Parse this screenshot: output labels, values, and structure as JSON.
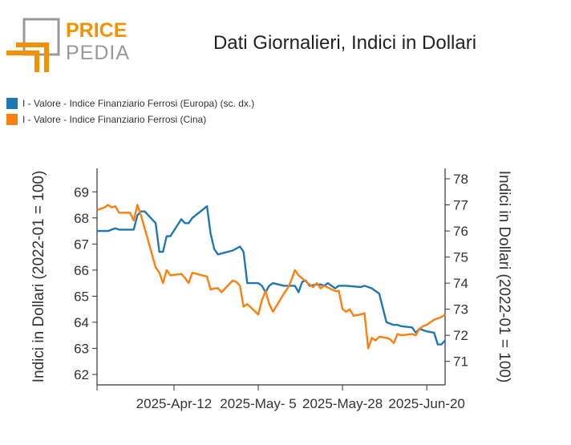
{
  "logo": {
    "word1": "PRICE",
    "word2": "PEDIA"
  },
  "title": "Dati Giornalieri, Indici in Dollari",
  "colors": {
    "europe": "#1f77b4",
    "china": "#ff7f0e",
    "axis": "#333333",
    "logo_orange": "#f39200",
    "logo_gray": "#999999"
  },
  "legend": [
    {
      "label": "I - Valore - Indice Finanziario Ferrosi (Europa) (sc. dx.)",
      "color": "#1f77b4"
    },
    {
      "label": "I - Valore - Indice Finanziario Ferrosi (Cina)",
      "color": "#ff7f0e"
    }
  ],
  "chart_data": {
    "type": "line",
    "x_ticks": [
      "2025-Apr-12",
      "2025-May- 5",
      "2025-May-28",
      "2025-Jun-20"
    ],
    "y_left": {
      "label": "Indici in Dollari (2022-01 = 100)",
      "ticks": [
        62,
        63,
        64,
        65,
        66,
        67,
        68,
        69
      ],
      "range": [
        61.6,
        69.9
      ]
    },
    "y_right": {
      "label": "Indici in Dollari (2022-01 = 100)",
      "ticks": [
        71,
        72,
        73,
        74,
        75,
        76,
        77,
        78
      ],
      "range": [
        70.1,
        78.4
      ]
    },
    "series": [
      {
        "name": "I - Valore - Indice Finanziario Ferrosi (Europa) (sc. dx.)",
        "axis": "right",
        "points": [
          [
            "2025-03-22",
            76.0
          ],
          [
            "2025-03-24",
            76.0
          ],
          [
            "2025-03-25",
            76.0
          ],
          [
            "2025-03-26",
            76.05
          ],
          [
            "2025-03-27",
            76.1
          ],
          [
            "2025-03-28",
            76.05
          ],
          [
            "2025-03-31",
            76.05
          ],
          [
            "2025-04-01",
            76.05
          ],
          [
            "2025-04-02",
            76.6
          ],
          [
            "2025-04-03",
            76.75
          ],
          [
            "2025-04-04",
            76.75
          ],
          [
            "2025-04-07",
            76.3
          ],
          [
            "2025-04-08",
            75.2
          ],
          [
            "2025-04-09",
            75.2
          ],
          [
            "2025-04-10",
            75.8
          ],
          [
            "2025-04-11",
            75.8
          ],
          [
            "2025-04-14",
            76.45
          ],
          [
            "2025-04-15",
            76.3
          ],
          [
            "2025-04-16",
            76.3
          ],
          [
            "2025-04-17",
            76.5
          ],
          [
            "2025-04-21",
            76.95
          ],
          [
            "2025-04-22",
            75.9
          ],
          [
            "2025-04-23",
            75.3
          ],
          [
            "2025-04-24",
            75.1
          ],
          [
            "2025-04-28",
            75.25
          ],
          [
            "2025-04-30",
            75.4
          ],
          [
            "2025-05-01",
            75.2
          ],
          [
            "2025-05-02",
            74.0
          ],
          [
            "2025-05-05",
            74.0
          ],
          [
            "2025-05-06",
            73.9
          ],
          [
            "2025-05-07",
            73.65
          ],
          [
            "2025-05-08",
            73.9
          ],
          [
            "2025-05-09",
            74.0
          ],
          [
            "2025-05-12",
            73.9
          ],
          [
            "2025-05-15",
            73.9
          ],
          [
            "2025-05-16",
            73.65
          ],
          [
            "2025-05-17",
            74.05
          ],
          [
            "2025-05-18",
            74.1
          ],
          [
            "2025-05-19",
            73.9
          ],
          [
            "2025-05-21",
            73.95
          ],
          [
            "2025-05-22",
            73.95
          ],
          [
            "2025-05-23",
            73.9
          ],
          [
            "2025-05-24",
            74.0
          ],
          [
            "2025-05-26",
            73.8
          ],
          [
            "2025-05-27",
            73.9
          ],
          [
            "2025-05-29",
            73.9
          ],
          [
            "2025-06-02",
            73.85
          ],
          [
            "2025-06-03",
            73.9
          ],
          [
            "2025-06-04",
            73.85
          ],
          [
            "2025-06-05",
            73.8
          ],
          [
            "2025-06-07",
            73.6
          ],
          [
            "2025-06-09",
            72.5
          ],
          [
            "2025-06-10",
            72.45
          ],
          [
            "2025-06-11",
            72.4
          ],
          [
            "2025-06-12",
            72.4
          ],
          [
            "2025-06-13",
            72.35
          ],
          [
            "2025-06-16",
            72.3
          ],
          [
            "2025-06-17",
            72.1
          ],
          [
            "2025-06-18",
            72.25
          ],
          [
            "2025-06-19",
            72.2
          ],
          [
            "2025-06-20",
            72.15
          ],
          [
            "2025-06-22",
            72.1
          ],
          [
            "2025-06-23",
            71.65
          ],
          [
            "2025-06-24",
            71.65
          ],
          [
            "2025-06-25",
            71.8
          ]
        ]
      },
      {
        "name": "I - Valore - Indice Finanziario Ferrosi (Cina)",
        "axis": "left",
        "points": [
          [
            "2025-03-22",
            68.3
          ],
          [
            "2025-03-24",
            68.4
          ],
          [
            "2025-03-25",
            68.5
          ],
          [
            "2025-03-26",
            68.4
          ],
          [
            "2025-03-27",
            68.45
          ],
          [
            "2025-03-28",
            68.2
          ],
          [
            "2025-03-31",
            68.2
          ],
          [
            "2025-04-01",
            67.9
          ],
          [
            "2025-04-02",
            68.5
          ],
          [
            "2025-04-03",
            68.1
          ],
          [
            "2025-04-07",
            66.1
          ],
          [
            "2025-04-08",
            65.9
          ],
          [
            "2025-04-09",
            65.5
          ],
          [
            "2025-04-10",
            66.0
          ],
          [
            "2025-04-11",
            65.8
          ],
          [
            "2025-04-14",
            65.85
          ],
          [
            "2025-04-15",
            65.7
          ],
          [
            "2025-04-16",
            65.5
          ],
          [
            "2025-04-17",
            65.9
          ],
          [
            "2025-04-21",
            65.75
          ],
          [
            "2025-04-22",
            65.25
          ],
          [
            "2025-04-23",
            65.3
          ],
          [
            "2025-04-24",
            65.3
          ],
          [
            "2025-04-25",
            65.15
          ],
          [
            "2025-04-28",
            65.6
          ],
          [
            "2025-04-29",
            65.55
          ],
          [
            "2025-04-30",
            65.4
          ],
          [
            "2025-05-01",
            64.6
          ],
          [
            "2025-05-02",
            64.7
          ],
          [
            "2025-05-05",
            64.3
          ],
          [
            "2025-05-06",
            64.85
          ],
          [
            "2025-05-07",
            65.2
          ],
          [
            "2025-05-08",
            64.7
          ],
          [
            "2025-05-09",
            64.4
          ],
          [
            "2025-05-12",
            65.1
          ],
          [
            "2025-05-13",
            65.3
          ],
          [
            "2025-05-14",
            65.6
          ],
          [
            "2025-05-15",
            66.0
          ],
          [
            "2025-05-16",
            65.8
          ],
          [
            "2025-05-19",
            65.45
          ],
          [
            "2025-05-20",
            65.35
          ],
          [
            "2025-05-21",
            65.5
          ],
          [
            "2025-05-22",
            65.3
          ],
          [
            "2025-05-23",
            65.4
          ],
          [
            "2025-05-26",
            65.2
          ],
          [
            "2025-05-27",
            65.2
          ],
          [
            "2025-05-28",
            64.5
          ],
          [
            "2025-05-29",
            64.4
          ],
          [
            "2025-05-30",
            64.5
          ],
          [
            "2025-05-31",
            64.25
          ],
          [
            "2025-06-02",
            64.3
          ],
          [
            "2025-06-03",
            64.35
          ],
          [
            "2025-06-04",
            63.0
          ],
          [
            "2025-06-05",
            63.4
          ],
          [
            "2025-06-06",
            63.3
          ],
          [
            "2025-06-07",
            63.45
          ],
          [
            "2025-06-09",
            63.4
          ],
          [
            "2025-06-10",
            63.35
          ],
          [
            "2025-06-11",
            63.2
          ],
          [
            "2025-06-12",
            63.55
          ],
          [
            "2025-06-13",
            63.5
          ],
          [
            "2025-06-16",
            63.55
          ],
          [
            "2025-06-17",
            63.5
          ],
          [
            "2025-06-18",
            63.75
          ],
          [
            "2025-06-19",
            63.85
          ],
          [
            "2025-06-20",
            63.9
          ],
          [
            "2025-06-21",
            64.0
          ],
          [
            "2025-06-22",
            64.1
          ],
          [
            "2025-06-24",
            64.2
          ],
          [
            "2025-06-25",
            64.3
          ]
        ]
      }
    ],
    "grid": false,
    "legend_position": "top-left"
  }
}
